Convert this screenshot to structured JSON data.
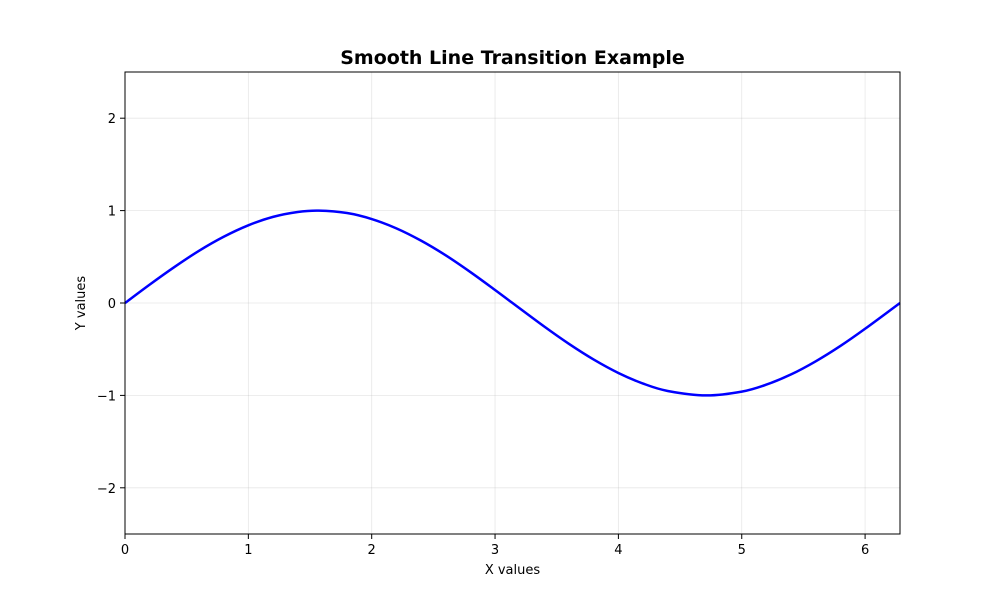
{
  "chart_data": {
    "type": "line",
    "title": "Smooth Line Transition Example",
    "xlabel": "X values",
    "ylabel": "Y values",
    "xlim": [
      0,
      6.283
    ],
    "ylim": [
      -2.5,
      2.5
    ],
    "xticks": [
      0,
      1,
      2,
      3,
      4,
      5,
      6
    ],
    "xtick_labels": [
      "0",
      "1",
      "2",
      "3",
      "4",
      "5",
      "6"
    ],
    "yticks": [
      -2,
      -1,
      0,
      1,
      2
    ],
    "ytick_labels": [
      "−2",
      "−1",
      "0",
      "1",
      "2"
    ],
    "grid": true,
    "legend": false,
    "series": [
      {
        "color": "#0000ff",
        "x": [
          0,
          0.2,
          0.4,
          0.6,
          0.8,
          1.0,
          1.2,
          1.4,
          1.5708,
          1.8,
          2.0,
          2.2,
          2.4,
          2.6,
          2.8,
          3.0,
          3.1416,
          3.4,
          3.6,
          3.8,
          4.0,
          4.2,
          4.4,
          4.7124,
          5.0,
          5.2,
          5.4,
          5.6,
          5.8,
          6.0,
          6.283
        ],
        "y": [
          0,
          0.199,
          0.389,
          0.565,
          0.717,
          0.841,
          0.932,
          0.985,
          1.0,
          0.974,
          0.909,
          0.808,
          0.675,
          0.516,
          0.335,
          0.141,
          0,
          -0.256,
          -0.443,
          -0.612,
          -0.757,
          -0.872,
          -0.952,
          -1.0,
          -0.959,
          -0.883,
          -0.773,
          -0.631,
          -0.465,
          -0.279,
          0
        ]
      }
    ]
  }
}
